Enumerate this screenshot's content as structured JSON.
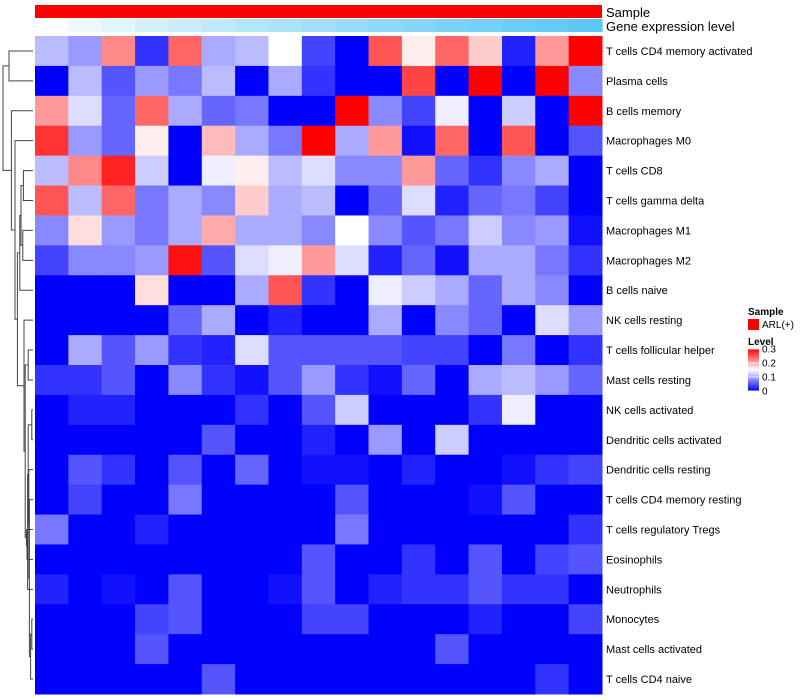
{
  "chart_data": {
    "type": "heatmap",
    "title": "",
    "annotations": [
      {
        "label": "Sample",
        "kind": "constant",
        "value": "ARL(+)",
        "color": "#ff0000"
      },
      {
        "label": "Gene expression level",
        "kind": "gradient",
        "low_color": "#ffffff",
        "high_color": "#5bc8f5"
      }
    ],
    "rows": [
      "T cells CD4 memory activated",
      "Plasma cells",
      "B cells memory",
      "Macrophages M0",
      "T cells CD8",
      "T cells gamma delta",
      "Macrophages M1",
      "Macrophages M2",
      "B cells naive",
      "NK cells resting",
      "T cells follicular helper",
      "Mast cells resting",
      "NK cells activated",
      "Dendritic cells activated",
      "Dendritic cells resting",
      "T cells CD4 memory resting",
      "T cells regulatory  Tregs",
      "Eosinophils",
      "Neutrophils",
      "Monocytes",
      "Mast cells activated",
      "T cells CD4 naive"
    ],
    "n_columns": 17,
    "values": [
      [
        0.11,
        0.09,
        0.22,
        0.03,
        0.24,
        0.1,
        0.11,
        0.15,
        0.04,
        0.0,
        0.25,
        0.16,
        0.24,
        0.18,
        0.02,
        0.21,
        0.3
      ],
      [
        0.0,
        0.11,
        0.05,
        0.09,
        0.07,
        0.11,
        0.0,
        0.1,
        0.03,
        0.0,
        0.0,
        0.26,
        0.0,
        0.3,
        0.0,
        0.3,
        0.08
      ],
      [
        0.21,
        0.13,
        0.06,
        0.24,
        0.1,
        0.06,
        0.07,
        0.0,
        0.0,
        0.3,
        0.08,
        0.04,
        0.14,
        0.0,
        0.12,
        0.0,
        0.3
      ],
      [
        0.27,
        0.09,
        0.06,
        0.16,
        0.0,
        0.19,
        0.1,
        0.07,
        0.3,
        0.1,
        0.21,
        0.01,
        0.24,
        0.0,
        0.25,
        0.0,
        0.05
      ],
      [
        0.11,
        0.22,
        0.28,
        0.12,
        0.0,
        0.14,
        0.16,
        0.11,
        0.13,
        0.08,
        0.08,
        0.21,
        0.06,
        0.03,
        0.08,
        0.1,
        0.0
      ],
      [
        0.25,
        0.11,
        0.24,
        0.07,
        0.1,
        0.08,
        0.18,
        0.1,
        0.11,
        0.0,
        0.06,
        0.13,
        0.02,
        0.06,
        0.07,
        0.04,
        0.0
      ],
      [
        0.08,
        0.17,
        0.09,
        0.07,
        0.1,
        0.2,
        0.1,
        0.1,
        0.08,
        0.15,
        0.08,
        0.05,
        0.07,
        0.12,
        0.08,
        0.09,
        0.01
      ],
      [
        0.04,
        0.08,
        0.08,
        0.09,
        0.29,
        0.05,
        0.13,
        0.14,
        0.21,
        0.13,
        0.02,
        0.06,
        0.01,
        0.1,
        0.1,
        0.07,
        0.03
      ],
      [
        0.0,
        0.0,
        0.0,
        0.17,
        0.0,
        0.0,
        0.1,
        0.25,
        0.03,
        0.0,
        0.14,
        0.12,
        0.1,
        0.06,
        0.1,
        0.08,
        0.0
      ],
      [
        0.0,
        0.0,
        0.0,
        0.0,
        0.06,
        0.1,
        0.0,
        0.02,
        0.0,
        0.0,
        0.1,
        0.0,
        0.08,
        0.06,
        0.0,
        0.13,
        0.09
      ],
      [
        0.0,
        0.1,
        0.05,
        0.09,
        0.03,
        0.02,
        0.13,
        0.05,
        0.05,
        0.05,
        0.05,
        0.04,
        0.04,
        0.0,
        0.07,
        0.0,
        0.03
      ],
      [
        0.03,
        0.03,
        0.05,
        0.0,
        0.08,
        0.03,
        0.01,
        0.05,
        0.09,
        0.03,
        0.01,
        0.06,
        0.0,
        0.1,
        0.11,
        0.09,
        0.06
      ],
      [
        0.0,
        0.02,
        0.02,
        0.0,
        0.0,
        0.0,
        0.03,
        0.0,
        0.05,
        0.12,
        0.0,
        0.0,
        0.0,
        0.03,
        0.14,
        0.0,
        0.0
      ],
      [
        0.0,
        0.0,
        0.0,
        0.0,
        0.0,
        0.05,
        0.0,
        0.0,
        0.02,
        0.0,
        0.09,
        0.0,
        0.12,
        0.0,
        0.0,
        0.0,
        0.0
      ],
      [
        0.0,
        0.05,
        0.03,
        0.0,
        0.05,
        0.0,
        0.06,
        0.0,
        0.01,
        0.01,
        0.0,
        0.02,
        0.0,
        0.0,
        0.01,
        0.03,
        0.04
      ],
      [
        0.0,
        0.04,
        0.0,
        0.0,
        0.07,
        0.0,
        0.0,
        0.0,
        0.0,
        0.05,
        0.0,
        0.0,
        0.0,
        0.01,
        0.05,
        0.0,
        0.0
      ],
      [
        0.07,
        0.0,
        0.0,
        0.02,
        0.0,
        0.0,
        0.0,
        0.0,
        0.0,
        0.07,
        0.0,
        0.0,
        0.0,
        0.0,
        0.0,
        0.0,
        0.03
      ],
      [
        0.0,
        0.0,
        0.0,
        0.0,
        0.0,
        0.0,
        0.0,
        0.0,
        0.05,
        0.0,
        0.0,
        0.03,
        0.0,
        0.05,
        0.0,
        0.04,
        0.05
      ],
      [
        0.02,
        0.0,
        0.01,
        0.0,
        0.05,
        0.0,
        0.0,
        0.01,
        0.05,
        0.0,
        0.02,
        0.03,
        0.03,
        0.05,
        0.03,
        0.03,
        0.0
      ],
      [
        0.0,
        0.0,
        0.0,
        0.04,
        0.05,
        0.0,
        0.0,
        0.0,
        0.04,
        0.04,
        0.0,
        0.0,
        0.0,
        0.02,
        0.0,
        0.0,
        0.04
      ],
      [
        0.0,
        0.0,
        0.0,
        0.05,
        0.0,
        0.0,
        0.0,
        0.0,
        0.0,
        0.0,
        0.0,
        0.0,
        0.05,
        0.0,
        0.0,
        0.0,
        0.0
      ],
      [
        0.0,
        0.0,
        0.0,
        0.0,
        0.0,
        0.05,
        0.0,
        0.0,
        0.0,
        0.0,
        0.0,
        0.0,
        0.0,
        0.0,
        0.0,
        0.03,
        0.0
      ]
    ],
    "color_scale": {
      "min": 0,
      "mid": 0.15,
      "max": 0.3,
      "low_color": "#0000ff",
      "mid_color": "#ffffff",
      "high_color": "#ff0000"
    },
    "legend": {
      "sample_title": "Sample",
      "sample_entry": "ARL(+)",
      "sample_color": "#ff0000",
      "level_title": "Level",
      "level_ticks": [
        0.3,
        0.2,
        0.1,
        0
      ],
      "level_tick_labels": [
        "0.3",
        "0.2",
        "0.1",
        "0"
      ],
      "placement": "right"
    },
    "dendrogram": {
      "side": "left",
      "merges": [
        [
          12,
          13,
          0.01
        ],
        [
          19,
          20,
          0.01
        ],
        [
          23,
          21,
          0.02
        ],
        [
          24,
          15,
          0.03
        ],
        [
          25,
          14,
          0.035
        ],
        [
          26,
          22,
          0.04
        ],
        [
          27,
          18,
          0.045
        ],
        [
          28,
          17,
          0.05
        ],
        [
          29,
          16,
          0.055
        ],
        [
          10,
          11,
          0.04
        ],
        [
          31,
          30,
          0.065
        ],
        [
          32,
          9,
          0.075
        ],
        [
          4,
          5,
          0.08
        ],
        [
          6,
          7,
          0.085
        ],
        [
          35,
          34,
          0.1
        ],
        [
          36,
          8,
          0.11
        ],
        [
          37,
          33,
          0.13
        ],
        [
          38,
          3,
          0.15
        ],
        [
          39,
          2,
          0.18
        ],
        [
          1,
          0,
          0.2
        ],
        [
          41,
          40,
          0.25
        ]
      ]
    }
  }
}
